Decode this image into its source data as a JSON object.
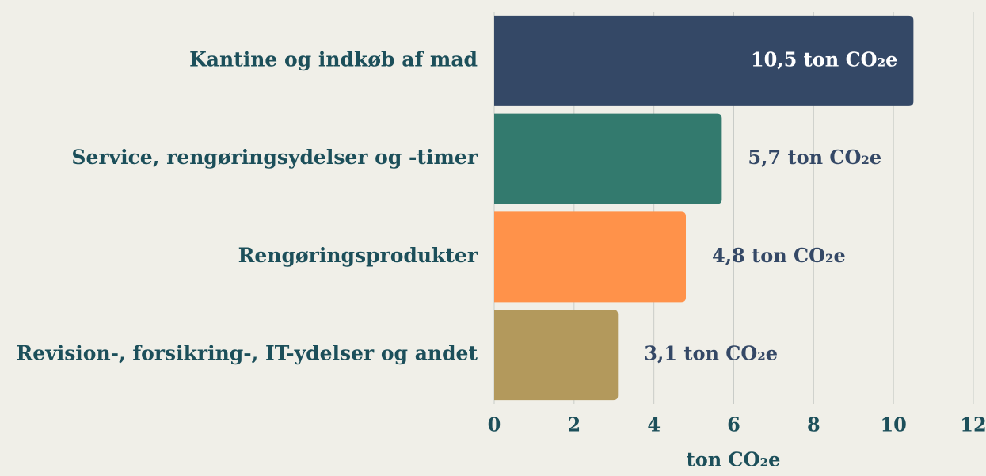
{
  "chart_data": {
    "type": "hbar",
    "categories": [
      "Kantine og indkøb af mad",
      "Service, rengøringsydelser og -timer",
      "Rengøringsprodukter",
      "Revision-, forsikring-, IT-ydelser og andet"
    ],
    "values": [
      10.5,
      5.7,
      4.8,
      3.1
    ],
    "value_labels": [
      "10,5 ton CO₂e",
      "5,7 ton CO₂e",
      "4,8 ton CO₂e",
      "3,1 ton CO₂e"
    ],
    "colors": [
      "#344866",
      "#337a6e",
      "#ff924a",
      "#b3995c"
    ],
    "xlabel": "ton CO₂e",
    "xlim": [
      0,
      12
    ],
    "xticks": [
      0,
      2,
      4,
      6,
      8,
      10,
      12
    ],
    "grid": true
  }
}
